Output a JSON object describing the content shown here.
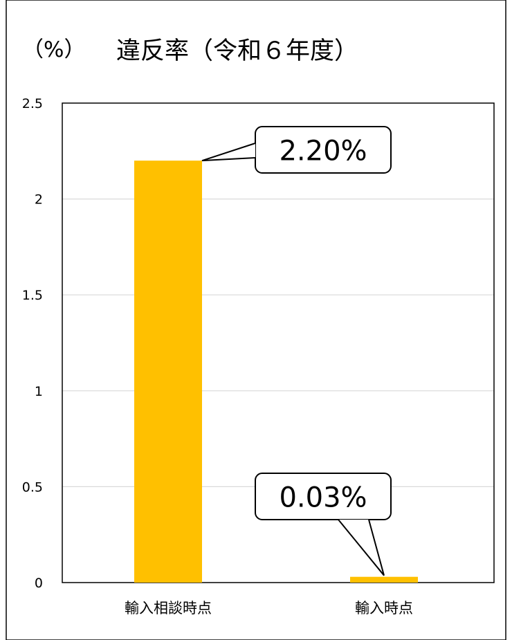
{
  "chart_data": {
    "type": "bar",
    "title": "違反率（令和６年度）",
    "unit_label": "（%）",
    "categories": [
      "輸入相談時点",
      "輸入時点"
    ],
    "values": [
      2.2,
      0.03
    ],
    "data_labels": [
      "2.20%",
      "0.03%"
    ],
    "y_ticks": [
      "0",
      "0.5",
      "1",
      "1.5",
      "2",
      "2.5"
    ],
    "y_tick_values": [
      0,
      0.5,
      1,
      1.5,
      2,
      2.5
    ],
    "ylim": [
      0,
      2.5
    ],
    "grid": true,
    "colors": {
      "bar": "#FFC000",
      "grid": "#D9D9D9",
      "frame": "#000000",
      "text": "#000000"
    }
  }
}
